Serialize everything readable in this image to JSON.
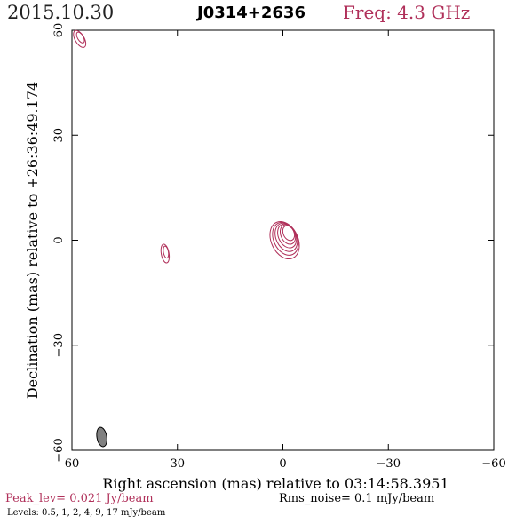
{
  "header": {
    "date": "2015.10.30",
    "source": "J0314+2636",
    "freq": "Freq: 4.3 GHz"
  },
  "footer": {
    "peak": "Peak_lev=  0.021 Jy/beam",
    "rms": "Rms_noise=   0.1 mJy/beam",
    "levels": "Levels: 0.5,    1,    2,    4,    9,   17 mJy/beam"
  },
  "colors": {
    "contour": "#b0305a",
    "beam_fill": "#808080",
    "axis": "#000000"
  },
  "chart_data": {
    "type": "contour",
    "xlabel": "Right ascension (mas) relative to 03:14:58.3951",
    "ylabel": "Declination (mas) relative to +26:36:49.174",
    "xlim": [
      60,
      -60
    ],
    "ylim": [
      -60,
      60
    ],
    "x_ticks": [
      60,
      30,
      0,
      -30,
      -60
    ],
    "y_ticks": [
      -60,
      -30,
      0,
      30,
      60
    ],
    "x_tick_labels": [
      "60",
      "30",
      "0",
      "−30",
      "−60"
    ],
    "y_tick_labels": [
      "−60",
      "−30",
      "0",
      "30",
      "60"
    ],
    "contour_levels_mJy": [
      0.5,
      1,
      2,
      4,
      9,
      17
    ],
    "components": [
      {
        "ra": -0.5,
        "dec": 0.0,
        "rx": 3.8,
        "ry": 5.6,
        "pa": -25,
        "levels": 6
      },
      {
        "ra": 33.5,
        "dec": -3.8,
        "rx": 1.1,
        "ry": 2.7,
        "pa": -10,
        "levels": 2
      },
      {
        "ra": 57.8,
        "dec": 57.5,
        "rx": 1.3,
        "ry": 2.7,
        "pa": -30,
        "levels": 2
      }
    ],
    "beam": {
      "ra": 51.5,
      "dec": -56.2,
      "rx": 1.4,
      "ry": 2.8,
      "pa": -10
    }
  }
}
